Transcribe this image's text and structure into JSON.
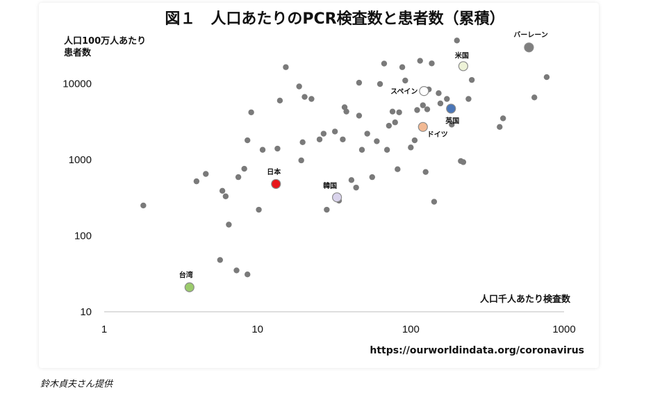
{
  "chart_data": {
    "type": "scatter",
    "title": "図１　人口あたりのPCR検査数と患者数（累積）",
    "xlabel": "人口千人あたり検査数",
    "ylabel": [
      "人口100万人あたり",
      "患者数"
    ],
    "x_scale": "log",
    "y_scale": "log",
    "xlim": [
      1,
      1000
    ],
    "ylim": [
      10,
      50000
    ],
    "x_ticks": [
      1,
      10,
      100,
      1000
    ],
    "x_tick_labels": [
      "1",
      "10",
      "100",
      "1000"
    ],
    "y_ticks": [
      10,
      100,
      1000,
      10000
    ],
    "y_tick_labels": [
      "10",
      "100",
      "1000",
      "10000"
    ],
    "grid": false,
    "points": [
      [
        1.8,
        250
      ],
      [
        4,
        520
      ],
      [
        4.6,
        650
      ],
      [
        5.9,
        390
      ],
      [
        6.2,
        330
      ],
      [
        6.5,
        140
      ],
      [
        5.7,
        48
      ],
      [
        7.3,
        35
      ],
      [
        8.6,
        31
      ],
      [
        7.5,
        590
      ],
      [
        8.2,
        760
      ],
      [
        8.6,
        1800
      ],
      [
        9.1,
        4200
      ],
      [
        10.2,
        220
      ],
      [
        10.8,
        1350
      ],
      [
        13.5,
        1400
      ],
      [
        14,
        6000
      ],
      [
        15.3,
        16500
      ],
      [
        18.7,
        9200
      ],
      [
        19.3,
        980
      ],
      [
        20.3,
        6700
      ],
      [
        19.7,
        1700
      ],
      [
        22.5,
        6300
      ],
      [
        25.4,
        1850
      ],
      [
        27,
        2200
      ],
      [
        28.3,
        220
      ],
      [
        32,
        2350
      ],
      [
        33,
        330
      ],
      [
        34,
        290
      ],
      [
        36,
        1850
      ],
      [
        37,
        4900
      ],
      [
        38,
        4300
      ],
      [
        41,
        540
      ],
      [
        44,
        430
      ],
      [
        46,
        3800
      ],
      [
        46,
        10300
      ],
      [
        48,
        1350
      ],
      [
        52,
        2200
      ],
      [
        56,
        590
      ],
      [
        60,
        1750
      ],
      [
        63,
        9900
      ],
      [
        67,
        18400
      ],
      [
        70,
        1350
      ],
      [
        72,
        2800
      ],
      [
        76,
        4300
      ],
      [
        79,
        3100
      ],
      [
        82,
        750
      ],
      [
        84,
        4200
      ],
      [
        88,
        16500
      ],
      [
        92,
        11000
      ],
      [
        100,
        1450
      ],
      [
        106,
        1800
      ],
      [
        110,
        4500
      ],
      [
        115,
        20000
      ],
      [
        120,
        5200
      ],
      [
        125,
        690
      ],
      [
        128,
        4600
      ],
      [
        131,
        8400
      ],
      [
        137,
        18500
      ],
      [
        142,
        280
      ],
      [
        152,
        7500
      ],
      [
        156,
        5500
      ],
      [
        172,
        6300
      ],
      [
        185,
        2900
      ],
      [
        200,
        37000
      ],
      [
        212,
        960
      ],
      [
        220,
        930
      ],
      [
        238,
        6300
      ],
      [
        250,
        11200
      ],
      [
        380,
        2700
      ],
      [
        400,
        3500
      ],
      [
        640,
        6600
      ],
      [
        770,
        12200
      ]
    ],
    "highlights": [
      {
        "label": "バーレーン",
        "x": 590,
        "y": 30000,
        "color": "#7f7f7f"
      },
      {
        "label": "米国",
        "x": 220,
        "y": 17000,
        "color": "#eef3d8"
      },
      {
        "label": "スペイン",
        "x": 122,
        "y": 8000,
        "color": "#ffffff"
      },
      {
        "label": "英国",
        "x": 183,
        "y": 4700,
        "color": "#4a76b8"
      },
      {
        "label": "ドイツ",
        "x": 120,
        "y": 2700,
        "color": "#f2b993"
      },
      {
        "label": "日本",
        "x": 13.2,
        "y": 480,
        "color": "#e8161b"
      },
      {
        "label": "韓国",
        "x": 33,
        "y": 320,
        "color": "#d9d3ec"
      },
      {
        "label": "台湾",
        "x": 3.6,
        "y": 21,
        "color": "#9bcb6c"
      }
    ],
    "point_color": "#7a7a7a",
    "source": "https://ourworldindata.org/coronavirus"
  },
  "credit": "鈴木貞夫さん提供"
}
